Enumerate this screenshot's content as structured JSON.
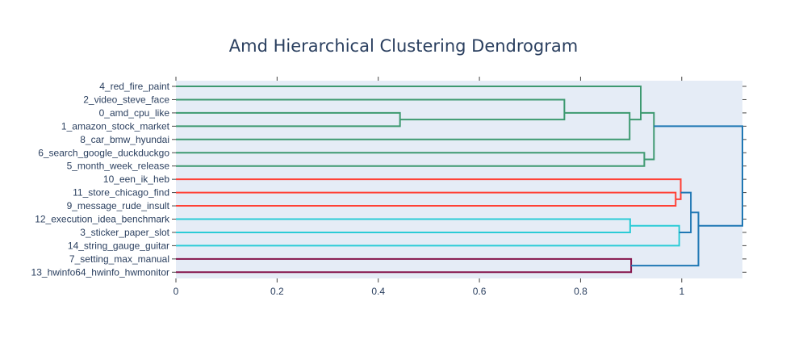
{
  "chart_data": {
    "type": "dendrogram",
    "title": "Amd Hierarchical Clustering Dendrogram",
    "orientation": "left",
    "xlim": [
      0,
      1.12
    ],
    "x_ticks": [
      0,
      0.2,
      0.4,
      0.6,
      0.8,
      1
    ],
    "x_tick_labels": [
      "0",
      "0.2",
      "0.4",
      "0.6",
      "0.8",
      "1"
    ],
    "leaves": [
      "4_red_fire_paint",
      "2_video_steve_face",
      "0_amd_cpu_like",
      "1_amazon_stock_market",
      "8_car_bmw_hyundai",
      "6_search_google_duckduckgo",
      "5_month_week_release",
      "10_een_ik_heb",
      "11_store_chicago_find",
      "9_message_rude_insult",
      "12_execution_idea_benchmark",
      "3_sticker_paper_slot",
      "14_string_gauge_guitar",
      "7_setting_max_manual",
      "13_hwinfo64_hwinfo_hwmonitor"
    ],
    "colors": {
      "green": "#3d9970",
      "red": "#ff4136",
      "cyan": "#2bcbd6",
      "purple": "#85144b",
      "blue": "#1f77b4",
      "plot_bg": "#e5ecf6"
    },
    "links": [
      {
        "left": 2,
        "right": 3,
        "height": 0.443,
        "left_h": 0,
        "right_h": 0,
        "color": "green"
      },
      {
        "left": 1,
        "right": [
          2,
          3
        ],
        "height": 0.768,
        "left_h": 0,
        "right_h": 0.443,
        "color": "green"
      },
      {
        "left": [
          1,
          3
        ],
        "right": 4,
        "height": 0.897,
        "left_h": 0.768,
        "right_h": 0,
        "color": "green"
      },
      {
        "left": 0,
        "right": [
          1,
          4
        ],
        "height": 0.919,
        "left_h": 0,
        "right_h": 0.897,
        "color": "green"
      },
      {
        "left": 5,
        "right": 6,
        "height": 0.926,
        "left_h": 0,
        "right_h": 0,
        "color": "green"
      },
      {
        "left": [
          0,
          4
        ],
        "right": [
          5,
          6
        ],
        "height": 0.945,
        "left_h": 0.919,
        "right_h": 0.926,
        "color": "green"
      },
      {
        "left": 8,
        "right": 9,
        "height": 0.988,
        "left_h": 0,
        "right_h": 0,
        "color": "red"
      },
      {
        "left": 7,
        "right": [
          8,
          9
        ],
        "height": 0.998,
        "left_h": 0,
        "right_h": 0.988,
        "color": "red"
      },
      {
        "left": 10,
        "right": 11,
        "height": 0.898,
        "left_h": 0,
        "right_h": 0,
        "color": "cyan"
      },
      {
        "left": [
          10,
          11
        ],
        "right": 12,
        "height": 0.995,
        "left_h": 0.898,
        "right_h": 0,
        "color": "cyan"
      },
      {
        "left": 13,
        "right": 14,
        "height": 0.9,
        "left_h": 0,
        "right_h": 0,
        "color": "purple"
      },
      {
        "left": [
          7,
          9
        ],
        "right": [
          10,
          12
        ],
        "height": 1.018,
        "left_h": 0.998,
        "right_h": 0.995,
        "color": "blue"
      },
      {
        "left": [
          7,
          12
        ],
        "right": [
          13,
          14
        ],
        "height": 1.033,
        "left_h": 1.018,
        "right_h": 0.9,
        "color": "blue"
      },
      {
        "left": [
          0,
          6
        ],
        "right": [
          7,
          14
        ],
        "height": 1.12,
        "left_h": 0.945,
        "right_h": 1.033,
        "color": "blue"
      }
    ]
  }
}
